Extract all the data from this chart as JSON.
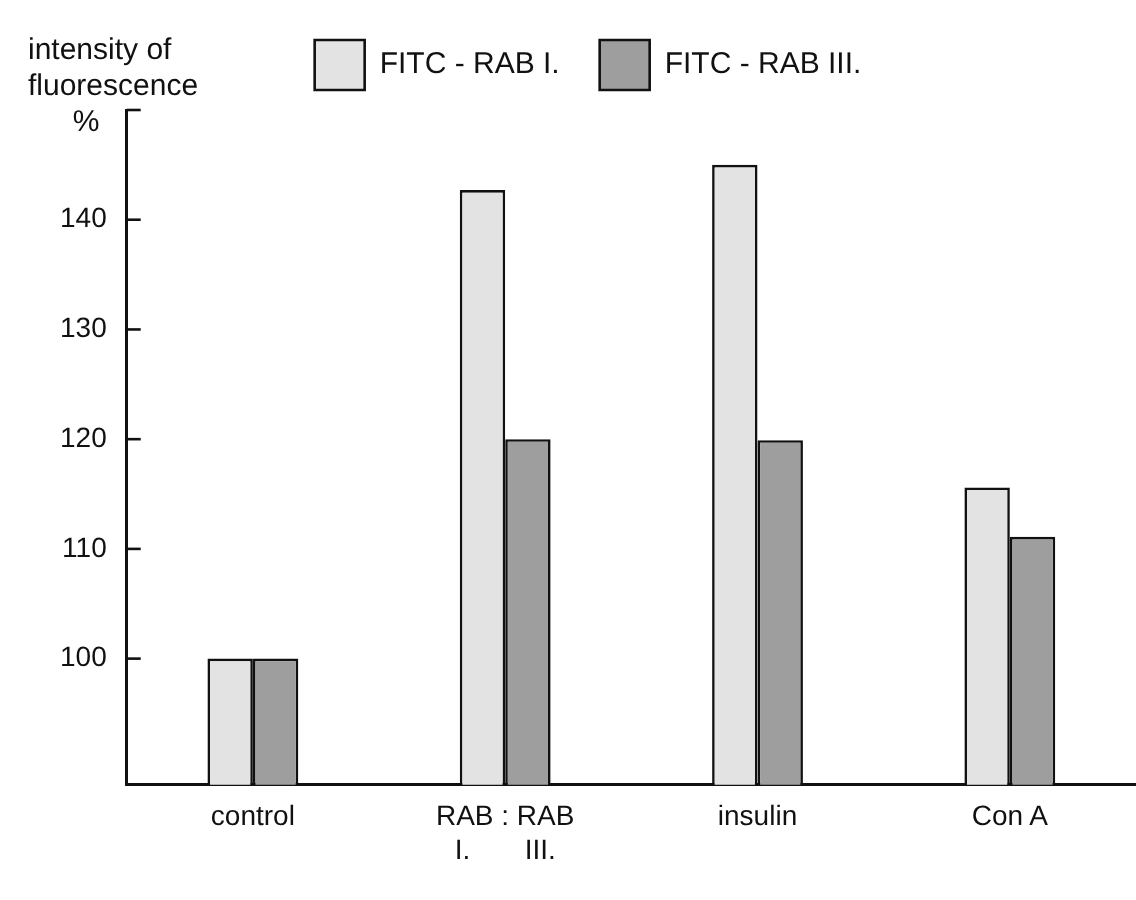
{
  "chart_data": {
    "type": "bar",
    "ylabel": "intensity of\nfluorescence\n%",
    "categories": [
      "control",
      "RAB : RAB\nI.       III.",
      "insulin",
      "Con A"
    ],
    "series": [
      {
        "name": "FITC - RAB I.",
        "color": "#e3e3e3",
        "values": [
          100,
          142.7,
          145.0,
          115.6
        ]
      },
      {
        "name": "FITC - RAB III.",
        "color": "#9e9e9e",
        "values": [
          100,
          120.0,
          119.9,
          111.1
        ]
      }
    ],
    "ylim": [
      88.5,
      150
    ],
    "yticks": [
      100,
      110,
      120,
      130,
      140,
      {
        "value": 150,
        "label": null
      }
    ],
    "grid": false,
    "legend": "top"
  }
}
